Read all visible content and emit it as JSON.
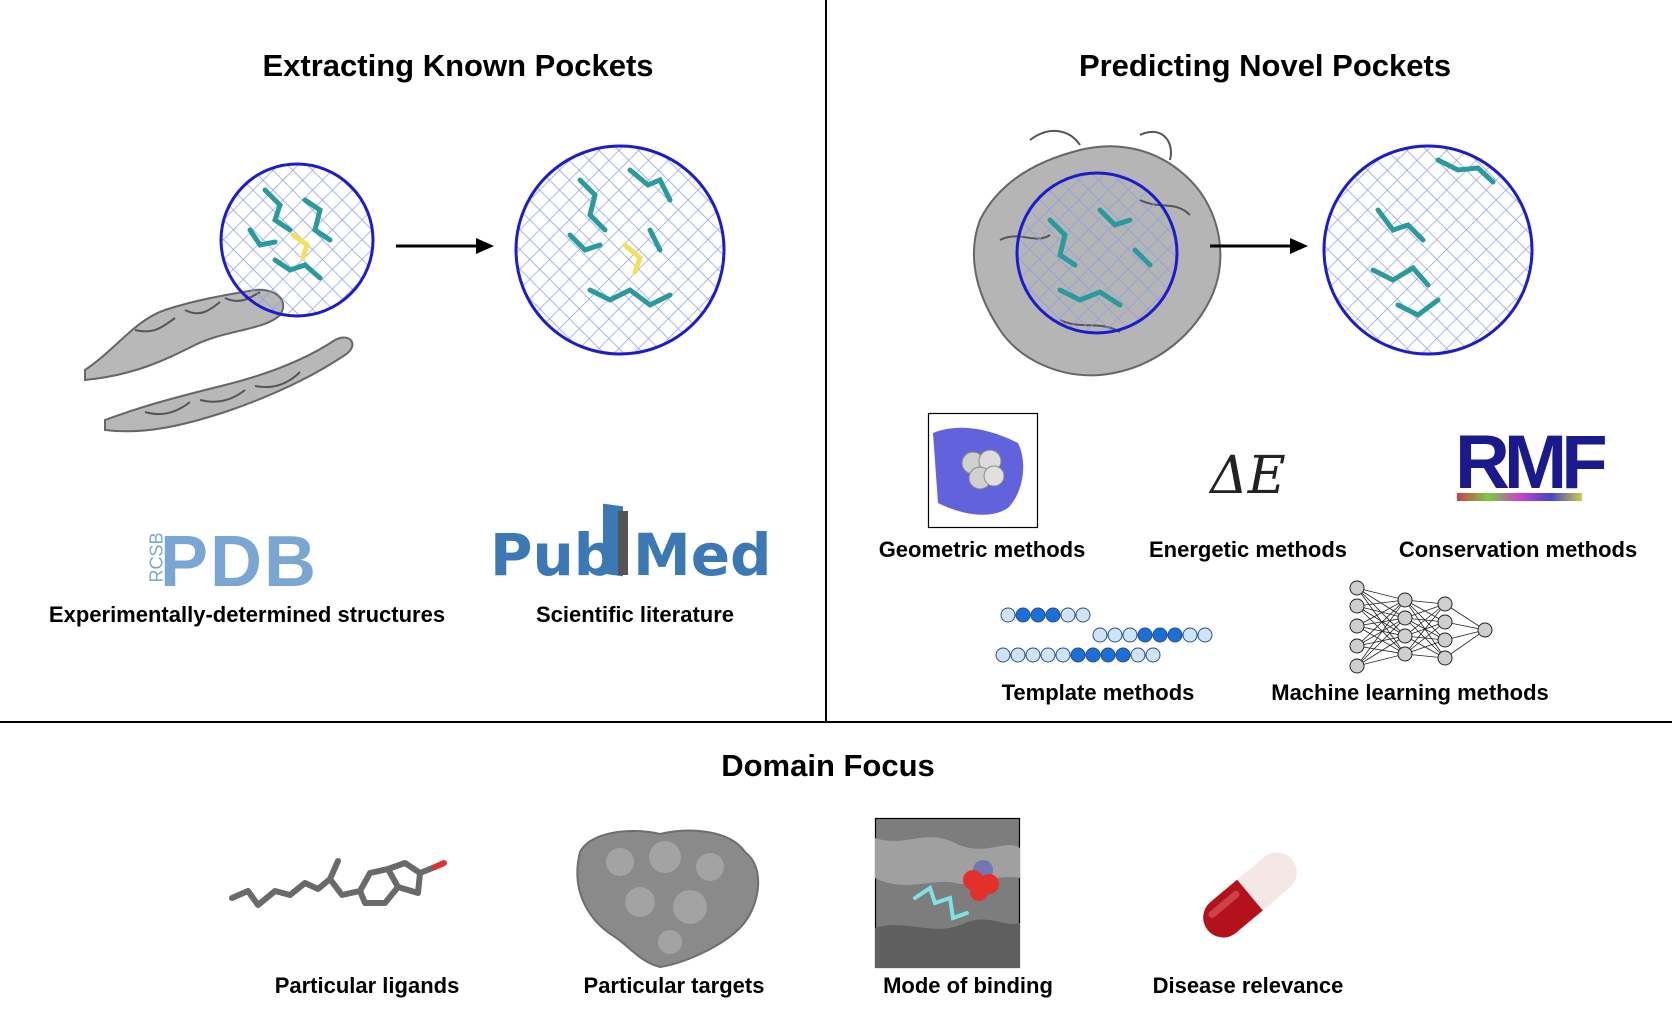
{
  "sections": {
    "known": {
      "title": "Extracting Known Pockets",
      "sources": [
        {
          "logo_text": "PDB",
          "logo_prefix": "RCSB",
          "caption": "Experimentally-determined structures"
        },
        {
          "logo_text_a": "Pub",
          "logo_text_b": "Med",
          "caption": "Scientific literature"
        }
      ]
    },
    "novel": {
      "title": "Predicting Novel Pockets",
      "energy_symbol": "ΔE",
      "seqlogo_text": "RMF",
      "methods": [
        {
          "label": "Geometric methods"
        },
        {
          "label": "Energetic methods"
        },
        {
          "label": "Conservation methods"
        },
        {
          "label": "Template methods"
        },
        {
          "label": "Machine learning methods"
        }
      ]
    },
    "domain": {
      "title": "Domain Focus",
      "items": [
        {
          "label": "Particular ligands"
        },
        {
          "label": "Particular targets"
        },
        {
          "label": "Mode of binding"
        },
        {
          "label": "Disease relevance"
        }
      ]
    }
  },
  "colors": {
    "circle": "#1c1ccc",
    "protein": "#9a9a9a",
    "residue": "#2a9a9c",
    "ligand_yellow": "#f1e25a",
    "pdb_blue": "#7aa6d4",
    "pubmed_blue": "#3b78b4",
    "seq_dark": "#1b6fd6",
    "seq_light": "#cfe5f7",
    "pill_red": "#b3121d"
  }
}
